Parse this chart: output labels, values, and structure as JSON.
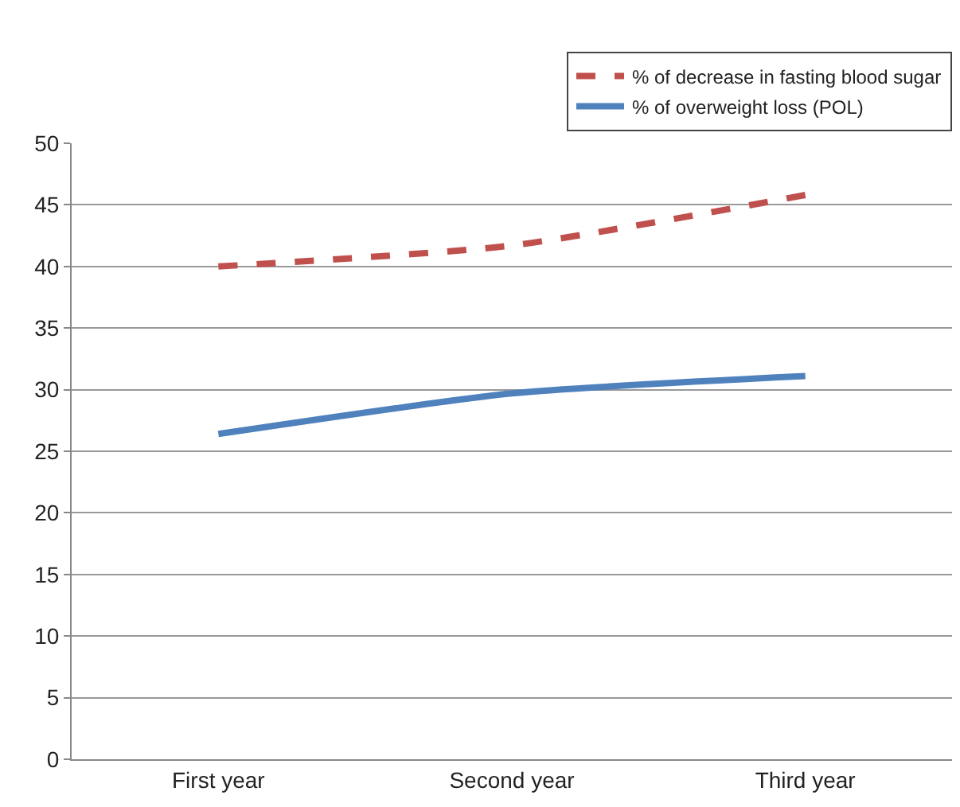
{
  "chart_data": {
    "type": "line",
    "categories": [
      "First year",
      "Second year",
      "Third year"
    ],
    "series": [
      {
        "name": "% of decrease in fasting blood sugar",
        "color": "#c0504d",
        "values": [
          40,
          41.7,
          45.8
        ],
        "line_style": "dashed"
      },
      {
        "name": "% of overweight loss (POL)",
        "color": "#4f81bd",
        "values": [
          26.4,
          29.7,
          31.1
        ],
        "line_style": "solid"
      }
    ],
    "ylim": [
      0,
      50
    ],
    "yticks": [
      0,
      5,
      10,
      15,
      20,
      25,
      30,
      35,
      40,
      45,
      50
    ],
    "grid": "y",
    "legend": "top right",
    "marker": "none"
  }
}
